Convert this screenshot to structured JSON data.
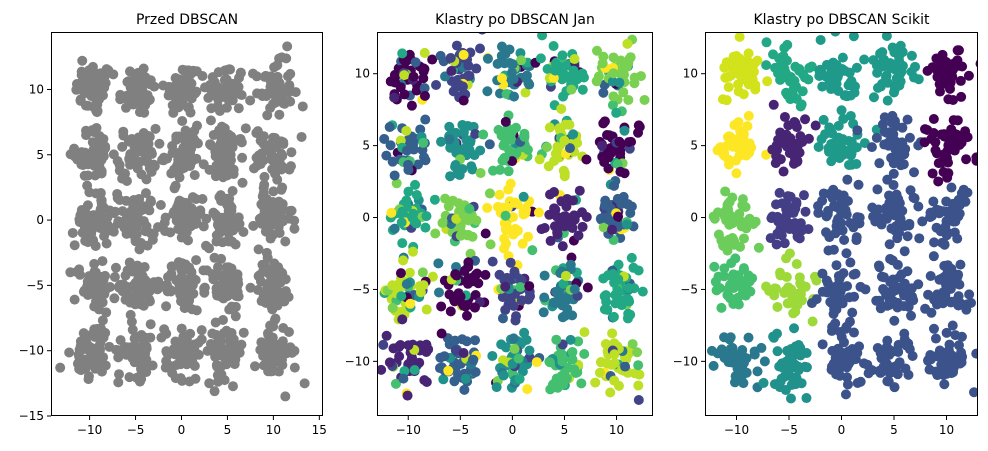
{
  "chart_data": [
    {
      "type": "scatter",
      "title": "Przed DBSCAN",
      "xlim": [
        -14.2,
        15.4
      ],
      "ylim": [
        -15.0,
        14.4
      ],
      "xticks": [
        -10,
        -5,
        0,
        5,
        10,
        15
      ],
      "yticks": [
        -15,
        -10,
        -5,
        0,
        5,
        10
      ],
      "point_color": "#808080",
      "cluster_centers_x": [
        -9.5,
        -4.8,
        0.2,
        4.8,
        10.0
      ],
      "cluster_centers_y": [
        10,
        5,
        0,
        -5,
        -10
      ],
      "points_per_cluster": 55,
      "spread": 1.2,
      "outliers": [
        [
          -13.2,
          -11.3
        ],
        [
          13.4,
          -12.5
        ],
        [
          11.3,
          -13.5
        ],
        [
          13.2,
          8.7
        ],
        [
          11.5,
          13.3
        ],
        [
          -10.8,
          12.2
        ],
        [
          3.6,
          -13.1
        ],
        [
          -6.8,
          -11.8
        ],
        [
          9.0,
          2.7
        ],
        [
          -7.0,
          2.0
        ]
      ]
    },
    {
      "type": "scatter",
      "title": "Klastry po DBSCAN Jan",
      "xlim": [
        -13.0,
        13.5
      ],
      "ylim": [
        -13.8,
        12.9
      ],
      "xticks": [
        -10,
        -5,
        0,
        5,
        10
      ],
      "yticks": [
        -10,
        -5,
        0,
        5,
        10
      ],
      "cluster_centers_x": [
        -10,
        -5,
        0,
        5,
        10
      ],
      "cluster_centers_y": [
        10,
        5,
        0,
        -5,
        -10
      ],
      "points_per_cluster": 45,
      "spread": 1.2,
      "palette": [
        "#440154",
        "#482475",
        "#414487",
        "#355f8d",
        "#2a788e",
        "#21918c",
        "#22a884",
        "#44bf70",
        "#7ad151",
        "#bddf26",
        "#fde725"
      ],
      "colors_ordered": false
    },
    {
      "type": "scatter",
      "title": "Klastry po DBSCAN Scikit",
      "xlim": [
        -13.0,
        13.0
      ],
      "ylim": [
        -13.8,
        12.9
      ],
      "xticks": [
        -10,
        -5,
        0,
        5,
        10
      ],
      "yticks": [
        -10,
        -5,
        0,
        5,
        10
      ],
      "cluster_centers_x": [
        -10,
        -5,
        0,
        5,
        10
      ],
      "cluster_centers_y": [
        10,
        5,
        0,
        -5,
        -10
      ],
      "points_per_cluster": 45,
      "spread": 1.2,
      "cluster_colors": [
        [
          "#d2e21b",
          "#22a884",
          "#1f9a8a",
          "#1f9a8a",
          "#440154"
        ],
        [
          "#fde725",
          "#482475",
          "#1f9a8a",
          "#3b528b",
          "#440154"
        ],
        [
          "#6ccd5a",
          "#433e85",
          "#3b528b",
          "#3b528b",
          "#3b528b"
        ],
        [
          "#44bf70",
          "#9ed93a",
          "#3b528b",
          "#3b528b",
          "#3b528b"
        ],
        [
          "#2a788e",
          "#21918c",
          "#3b528b",
          "#3b528b",
          "#3b528b"
        ]
      ]
    }
  ]
}
